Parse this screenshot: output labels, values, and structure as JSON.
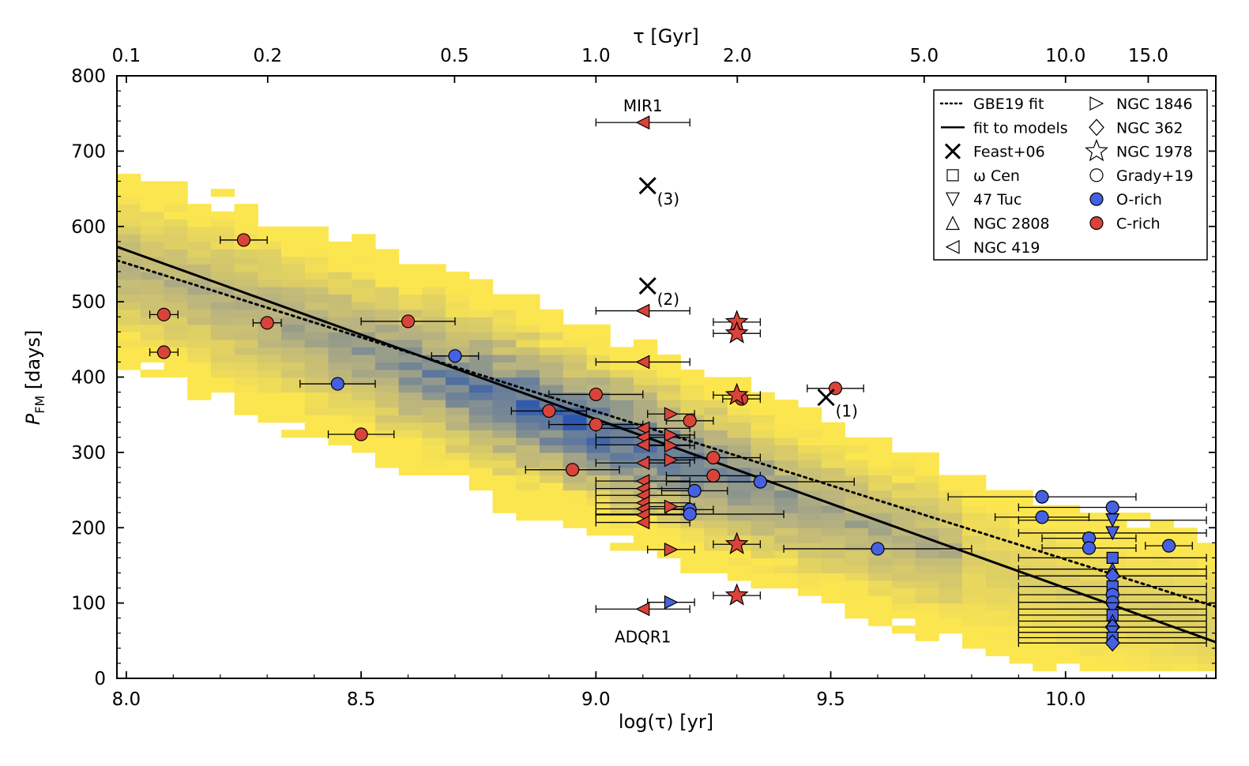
{
  "chart_data": {
    "type": "scatter",
    "title": "",
    "xlabel": "log(τ) [yr]",
    "ylabel": "P",
    "ylabel_sub": "FM",
    "ylabel_unit": " [days]",
    "top_xlabel": "τ [Gyr]",
    "xlim": [
      7.98,
      10.32
    ],
    "ylim": [
      0,
      800
    ],
    "x_ticks": [
      "8.0",
      "8.5",
      "9.0",
      "9.5",
      "10.0"
    ],
    "y_ticks": [
      "0",
      "100",
      "200",
      "300",
      "400",
      "500",
      "600",
      "700",
      "800"
    ],
    "top_ticks": [
      "0.1",
      "0.2",
      "0.5",
      "1.0",
      "2.0",
      "5.0",
      "10.0",
      "15.0"
    ],
    "top_tick_gyr": [
      0.1,
      0.2,
      0.5,
      1.0,
      2.0,
      5.0,
      10.0,
      15.0
    ],
    "grid": false,
    "colors": {
      "o_rich": "#4560e0",
      "c_rich": "#d9443a",
      "density_low": "#fce650",
      "density_high": "#3d62a8"
    },
    "lines": {
      "gbe19_fit": [
        [
          7.98,
          555
        ],
        [
          10.32,
          95
        ]
      ],
      "fit_to_models": [
        [
          7.98,
          573
        ],
        [
          10.32,
          48
        ]
      ]
    },
    "density_ridge": [
      [
        7.98,
        550
      ],
      [
        8.5,
        438
      ],
      [
        9.0,
        330
      ],
      [
        9.5,
        218
      ],
      [
        10.0,
        118
      ],
      [
        10.32,
        72
      ]
    ],
    "points": [
      {
        "x": 8.25,
        "y": 582,
        "xerr": 0.05,
        "m": "circle",
        "c": "c_rich"
      },
      {
        "x": 8.08,
        "y": 483,
        "xerr": 0.03,
        "m": "circle",
        "c": "c_rich"
      },
      {
        "x": 8.08,
        "y": 433,
        "xerr": 0.03,
        "m": "circle",
        "c": "c_rich"
      },
      {
        "x": 8.3,
        "y": 472,
        "xerr": 0.03,
        "m": "circle",
        "c": "c_rich"
      },
      {
        "x": 8.6,
        "y": 474,
        "xerr": 0.1,
        "m": "circle",
        "c": "c_rich"
      },
      {
        "x": 8.7,
        "y": 428,
        "xerr": 0.05,
        "m": "circle",
        "c": "o_rich"
      },
      {
        "x": 8.45,
        "y": 391,
        "xerr": 0.08,
        "m": "circle",
        "c": "o_rich"
      },
      {
        "x": 8.5,
        "y": 324,
        "xerr": 0.07,
        "m": "circle",
        "c": "c_rich"
      },
      {
        "x": 9.0,
        "y": 377,
        "xerr": 0.1,
        "m": "circle",
        "c": "c_rich"
      },
      {
        "x": 8.9,
        "y": 355,
        "xerr": 0.08,
        "m": "circle",
        "c": "c_rich"
      },
      {
        "x": 9.0,
        "y": 337,
        "xerr": 0.1,
        "m": "circle",
        "c": "c_rich"
      },
      {
        "x": 8.95,
        "y": 277,
        "xerr": 0.1,
        "m": "circle",
        "c": "c_rich"
      },
      {
        "x": 9.2,
        "y": 342,
        "xerr": 0.05,
        "m": "circle",
        "c": "c_rich"
      },
      {
        "x": 9.25,
        "y": 293,
        "xerr": 0.1,
        "m": "circle",
        "c": "c_rich"
      },
      {
        "x": 9.25,
        "y": 269,
        "xerr": 0.1,
        "m": "circle",
        "c": "c_rich"
      },
      {
        "x": 9.35,
        "y": 261,
        "xerr": 0.2,
        "m": "circle",
        "c": "o_rich"
      },
      {
        "x": 9.21,
        "y": 249,
        "xerr": 0.07,
        "m": "circle",
        "c": "o_rich"
      },
      {
        "x": 9.2,
        "y": 224,
        "xerr": 0.05,
        "m": "circle",
        "c": "o_rich"
      },
      {
        "x": 9.2,
        "y": 218,
        "xerr": 0.2,
        "m": "circle",
        "c": "o_rich"
      },
      {
        "x": 9.6,
        "y": 172,
        "xerr": 0.2,
        "m": "circle",
        "c": "o_rich"
      },
      {
        "x": 9.51,
        "y": 385,
        "xerr": 0.06,
        "m": "circle",
        "c": "c_rich"
      },
      {
        "x": 9.31,
        "y": 371,
        "xerr": 0.04,
        "m": "circle",
        "c": "c_rich"
      },
      {
        "x": 9.95,
        "y": 241,
        "xerr": 0.2,
        "m": "circle",
        "c": "o_rich"
      },
      {
        "x": 9.95,
        "y": 214,
        "xerr": 0.1,
        "m": "circle",
        "c": "o_rich"
      },
      {
        "x": 10.05,
        "y": 186,
        "xerr": 0.1,
        "m": "circle",
        "c": "o_rich"
      },
      {
        "x": 10.05,
        "y": 173,
        "xerr": 0.1,
        "m": "circle",
        "c": "o_rich"
      },
      {
        "x": 10.1,
        "y": 227,
        "xerr": 0.2,
        "m": "circle",
        "c": "o_rich"
      },
      {
        "x": 10.22,
        "y": 176,
        "xerr": 0.05,
        "m": "circle",
        "c": "o_rich"
      },
      {
        "x": 9.1,
        "y": 738,
        "xerr": 0.1,
        "m": "tri-left",
        "c": "c_rich"
      },
      {
        "x": 9.1,
        "y": 488,
        "xerr": 0.1,
        "m": "tri-left",
        "c": "c_rich"
      },
      {
        "x": 9.1,
        "y": 420,
        "xerr": 0.1,
        "m": "tri-left",
        "c": "c_rich"
      },
      {
        "x": 9.1,
        "y": 332,
        "xerr": 0.1,
        "m": "tri-left",
        "c": "c_rich"
      },
      {
        "x": 9.1,
        "y": 320,
        "xerr": 0.1,
        "m": "tri-left",
        "c": "c_rich"
      },
      {
        "x": 9.1,
        "y": 310,
        "xerr": 0.1,
        "m": "tri-left",
        "c": "c_rich"
      },
      {
        "x": 9.1,
        "y": 286,
        "xerr": 0.1,
        "m": "tri-left",
        "c": "c_rich"
      },
      {
        "x": 9.1,
        "y": 262,
        "xerr": 0.1,
        "m": "tri-left",
        "c": "c_rich"
      },
      {
        "x": 9.1,
        "y": 252,
        "xerr": 0.1,
        "m": "tri-left",
        "c": "c_rich"
      },
      {
        "x": 9.1,
        "y": 243,
        "xerr": 0.1,
        "m": "tri-left",
        "c": "c_rich"
      },
      {
        "x": 9.1,
        "y": 233,
        "xerr": 0.1,
        "m": "tri-left",
        "c": "c_rich"
      },
      {
        "x": 9.1,
        "y": 225,
        "xerr": 0.1,
        "m": "tri-left",
        "c": "c_rich"
      },
      {
        "x": 9.1,
        "y": 217,
        "xerr": 0.1,
        "m": "tri-left",
        "c": "c_rich"
      },
      {
        "x": 9.1,
        "y": 207,
        "xerr": 0.1,
        "m": "tri-left",
        "c": "c_rich"
      },
      {
        "x": 9.1,
        "y": 92,
        "xerr": 0.1,
        "m": "tri-left",
        "c": "c_rich"
      },
      {
        "x": 9.16,
        "y": 351,
        "xerr": 0.05,
        "m": "tri-right",
        "c": "c_rich"
      },
      {
        "x": 9.16,
        "y": 323,
        "xerr": 0.05,
        "m": "tri-right",
        "c": "c_rich"
      },
      {
        "x": 9.16,
        "y": 309,
        "xerr": 0.05,
        "m": "tri-right",
        "c": "c_rich"
      },
      {
        "x": 9.16,
        "y": 290,
        "xerr": 0.05,
        "m": "tri-right",
        "c": "c_rich"
      },
      {
        "x": 9.16,
        "y": 228,
        "xerr": 0.05,
        "m": "tri-right",
        "c": "c_rich"
      },
      {
        "x": 9.16,
        "y": 171,
        "xerr": 0.05,
        "m": "tri-right",
        "c": "c_rich"
      },
      {
        "x": 9.16,
        "y": 101,
        "xerr": 0.05,
        "m": "tri-right",
        "c": "o_rich"
      },
      {
        "x": 9.3,
        "y": 473,
        "xerr": 0.05,
        "m": "star",
        "c": "c_rich"
      },
      {
        "x": 9.3,
        "y": 458,
        "xerr": 0.05,
        "m": "star",
        "c": "c_rich"
      },
      {
        "x": 9.3,
        "y": 376,
        "xerr": 0.05,
        "m": "star",
        "c": "c_rich"
      },
      {
        "x": 9.3,
        "y": 178,
        "xerr": 0.05,
        "m": "star",
        "c": "c_rich"
      },
      {
        "x": 9.3,
        "y": 110,
        "xerr": 0.05,
        "m": "star",
        "c": "c_rich"
      },
      {
        "x": 10.1,
        "y": 210,
        "xerr": 0.2,
        "m": "tri-down",
        "c": "o_rich"
      },
      {
        "x": 10.1,
        "y": 193,
        "xerr": 0.2,
        "m": "tri-down",
        "c": "o_rich"
      },
      {
        "x": 10.1,
        "y": 160,
        "xerr": 0.2,
        "m": "square",
        "c": "o_rich"
      },
      {
        "x": 10.1,
        "y": 145,
        "xerr": 0.2,
        "m": "tri-up",
        "c": "o_rich"
      },
      {
        "x": 10.1,
        "y": 136,
        "xerr": 0.2,
        "m": "diamond",
        "c": "o_rich"
      },
      {
        "x": 10.1,
        "y": 122,
        "xerr": 0.2,
        "m": "square",
        "c": "o_rich"
      },
      {
        "x": 10.1,
        "y": 111,
        "xerr": 0.2,
        "m": "circle",
        "c": "o_rich"
      },
      {
        "x": 10.1,
        "y": 101,
        "xerr": 0.2,
        "m": "circle",
        "c": "o_rich"
      },
      {
        "x": 10.1,
        "y": 92,
        "xerr": 0.2,
        "m": "tri-down",
        "c": "o_rich"
      },
      {
        "x": 10.1,
        "y": 84,
        "xerr": 0.2,
        "m": "square",
        "c": "o_rich"
      },
      {
        "x": 10.1,
        "y": 76,
        "xerr": 0.2,
        "m": "tri-up",
        "c": "o_rich"
      },
      {
        "x": 10.1,
        "y": 68,
        "xerr": 0.2,
        "m": "diamond",
        "c": "o_rich"
      },
      {
        "x": 10.1,
        "y": 61,
        "xerr": 0.2,
        "m": "tri-down",
        "c": "o_rich"
      },
      {
        "x": 10.1,
        "y": 54,
        "xerr": 0.2,
        "m": "square",
        "c": "o_rich"
      },
      {
        "x": 10.1,
        "y": 47,
        "xerr": 0.2,
        "m": "diamond",
        "c": "o_rich"
      }
    ],
    "feast06": [
      {
        "x": 9.11,
        "y": 654,
        "label": "(3)"
      },
      {
        "x": 9.11,
        "y": 521,
        "label": "(2)"
      },
      {
        "x": 9.49,
        "y": 373,
        "label": "(1)"
      }
    ],
    "annotations": [
      {
        "text": "MIR1",
        "x": 9.1,
        "y": 760
      },
      {
        "text": "ADQR1",
        "x": 9.1,
        "y": 55
      }
    ],
    "legend": {
      "placement": "top-right",
      "col1": [
        {
          "label": "GBE19 fit",
          "icon": "dotted-line"
        },
        {
          "label": "fit to models",
          "icon": "solid-line"
        },
        {
          "label": "Feast+06",
          "icon": "x"
        },
        {
          "label": "ω Cen",
          "icon": "square"
        },
        {
          "label": "47 Tuc",
          "icon": "tri-down"
        },
        {
          "label": "NGC 2808",
          "icon": "tri-up"
        },
        {
          "label": "NGC 419",
          "icon": "tri-left"
        }
      ],
      "col2": [
        {
          "label": "NGC 1846",
          "icon": "tri-right"
        },
        {
          "label": "NGC 362",
          "icon": "diamond"
        },
        {
          "label": "NGC 1978",
          "icon": "star"
        },
        {
          "label": "Grady+19",
          "icon": "circle-open"
        },
        {
          "label": "O-rich",
          "icon": "circle-blue"
        },
        {
          "label": "C-rich",
          "icon": "circle-red"
        }
      ]
    }
  }
}
